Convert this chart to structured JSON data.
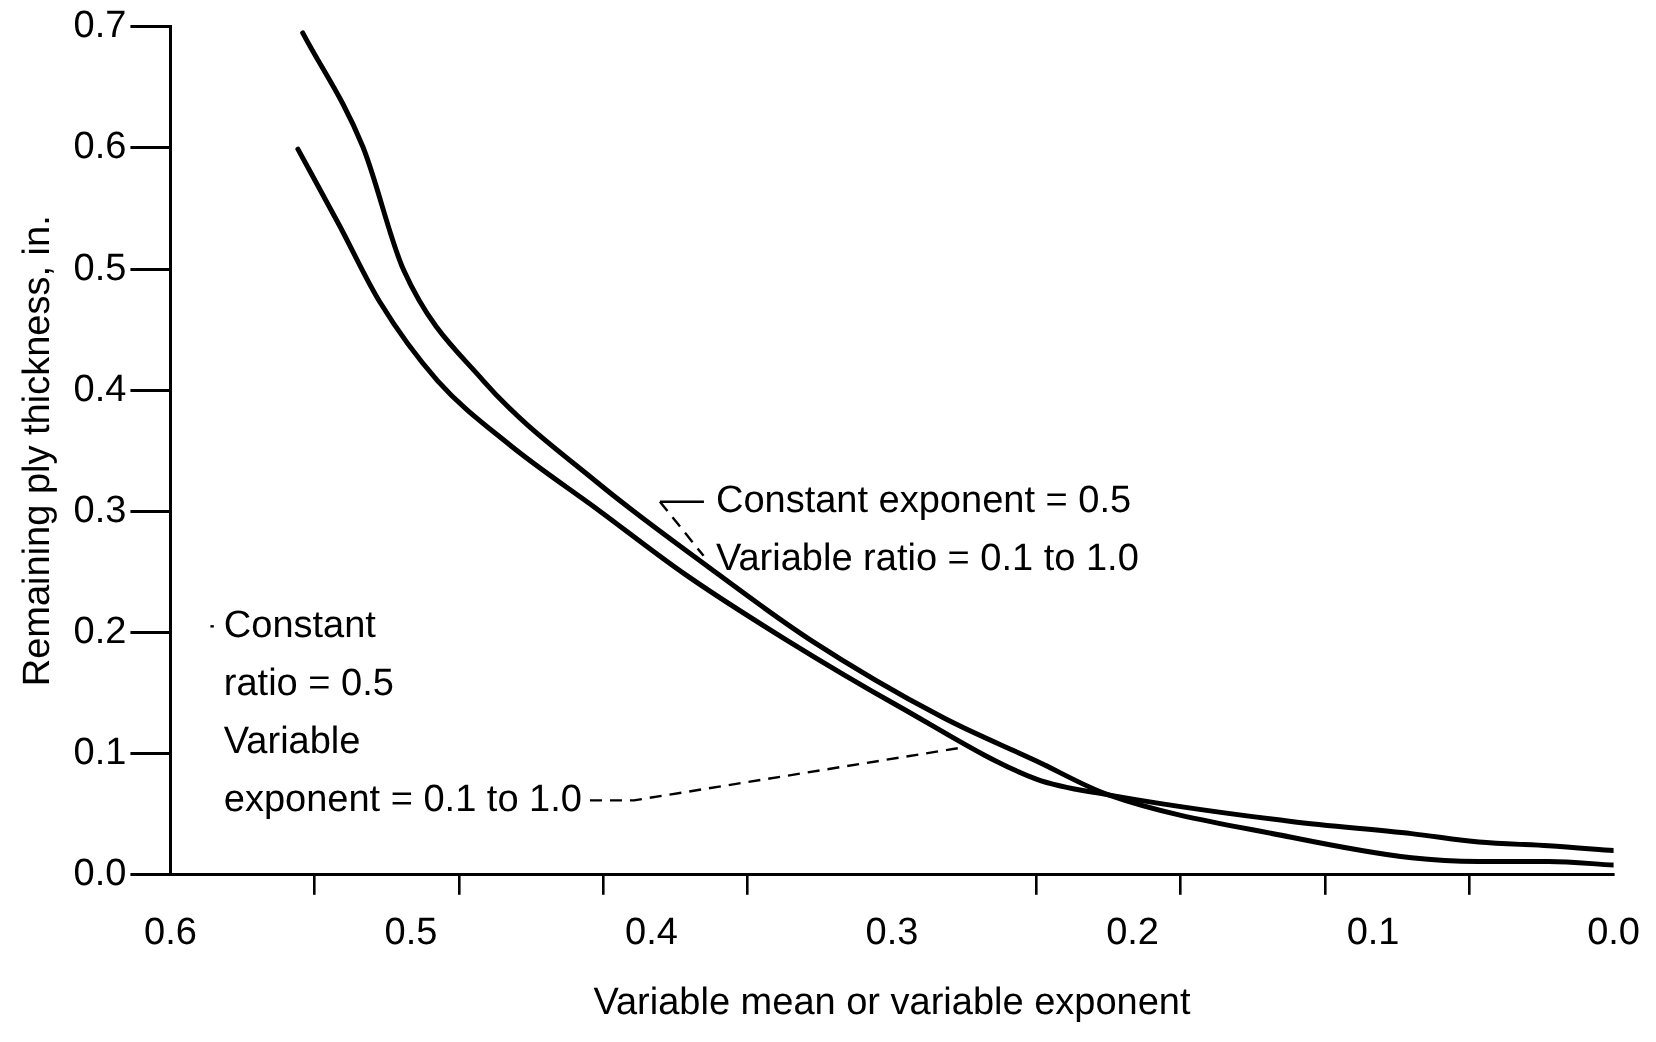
{
  "chart_data": {
    "type": "line",
    "xlabel": "Variable mean or variable exponent",
    "ylabel": "Remaining ply thickness, in.",
    "xlim": [
      0.6,
      0.0
    ],
    "xticks": [
      0.6,
      {
        "value": 0.54,
        "label": null
      },
      0.5,
      {
        "value": 0.48,
        "label": null
      },
      {
        "value": 0.42,
        "label": null
      },
      0.4,
      {
        "value": 0.36,
        "label": null
      },
      0.3,
      {
        "value": 0.24,
        "label": null
      },
      0.2,
      {
        "value": 0.18,
        "label": null
      },
      {
        "value": 0.12,
        "label": null
      },
      0.1,
      {
        "value": 0.06,
        "label": null
      },
      {
        "value": 0.0,
        "label": "0.0"
      }
    ],
    "ylim": [
      0.0,
      0.7
    ],
    "yticks": [
      {
        "value": 0.0,
        "label": "0.0"
      },
      0.1,
      0.2,
      0.3,
      0.4,
      0.5,
      0.6,
      0.7
    ],
    "grid": false,
    "legend": false,
    "marker": "none",
    "line_style": "solid",
    "series": [
      {
        "color": "#000000",
        "x": [
          0.545,
          0.52,
          0.503,
          0.47,
          0.422,
          0.379,
          0.334,
          0.279,
          0.24,
          0.21,
          0.134,
          0.084,
          0.056,
          0.027,
          0.0
        ],
        "values": [
          0.695,
          0.601,
          0.499,
          0.408,
          0.323,
          0.258,
          0.194,
          0.13,
          0.094,
          0.066,
          0.031,
          0.014,
          0.011,
          0.011,
          0.008
        ]
      },
      {
        "color": "#000000",
        "x": [
          0.547,
          0.53,
          0.513,
          0.489,
          0.459,
          0.422,
          0.386,
          0.344,
          0.298,
          0.24,
          0.21,
          0.134,
          0.084,
          0.056,
          0.027,
          0.0
        ],
        "values": [
          0.599,
          0.537,
          0.473,
          0.408,
          0.355,
          0.301,
          0.248,
          0.194,
          0.14,
          0.079,
          0.066,
          0.044,
          0.034,
          0.027,
          0.024,
          0.02
        ]
      }
    ],
    "annotations": [
      {
        "text": "Constant exponent = 0.5\nVariable ratio = 0.1 to 1.0",
        "x": 0.38,
        "y": 0.26
      },
      {
        "text": "Constant\nratio = 0.5\nVariable\nexponent = 0.1 to 1.0",
        "x": 0.27,
        "y": 0.11
      }
    ]
  }
}
